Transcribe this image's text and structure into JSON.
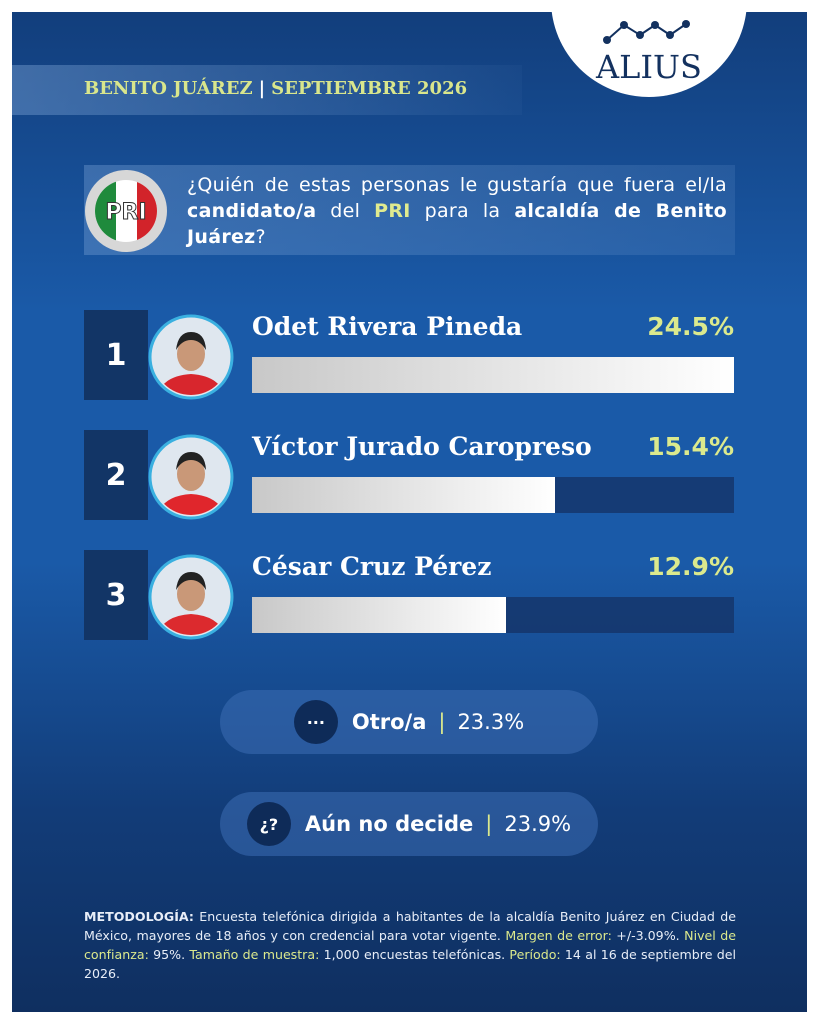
{
  "header": {
    "place": "BENITO JUÁREZ",
    "date": "SEPTIEMBRE 2026",
    "brand": "ALIUS"
  },
  "question": {
    "logo_text": "PRI",
    "parts": [
      "¿Quién de estas personas le gustaría que fuera el/la ",
      "candidato/a",
      " del ",
      "PRI",
      " para la ",
      "alcaldía de Benito Juárez",
      "?"
    ]
  },
  "chart_data": {
    "type": "bar",
    "ranks": [
      "1",
      "2",
      "3"
    ],
    "categories": [
      "Odet Rivera Pineda",
      "Víctor Jurado Caropreso",
      "César Cruz Pérez"
    ],
    "values": [
      24.5,
      15.4,
      12.9
    ],
    "value_labels": [
      "24.5%",
      "15.4%",
      "12.9%"
    ]
  },
  "others": [
    {
      "icon": "···",
      "label": "Otro/a",
      "value": "23.3%"
    },
    {
      "icon": "¿?",
      "label": "Aún no decide",
      "value": "23.9%"
    }
  ],
  "methodology": [
    "METODOLOGÍA:",
    " Encuesta telefónica dirigida a habitantes de la alcaldía Benito Juárez en Ciudad de México, mayores de 18 años y con credencial para votar vigente. ",
    "Margen de error:",
    " +/-3.09%. ",
    "Nivel de confianza:",
    " 95%. ",
    "Tamaño de muestra:",
    " 1,000 encuestas telefónicas. ",
    "Período:",
    " 14 al 16 de septiembre del 2026."
  ]
}
